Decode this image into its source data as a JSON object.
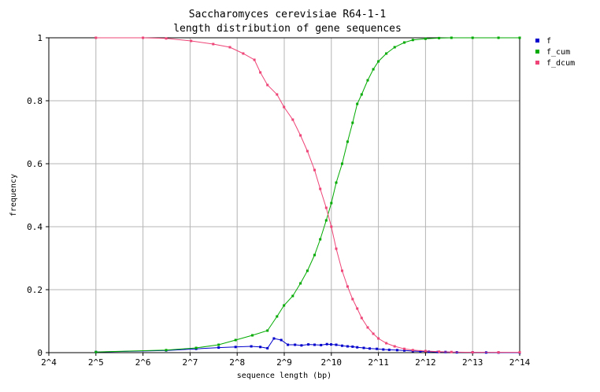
{
  "chart_data": {
    "type": "line",
    "title_line1": "Saccharomyces cerevisiae R64-1-1",
    "title_line2": "length distribution of gene sequences",
    "xlabel": "sequence length (bp)",
    "ylabel": "frequency",
    "x_scale": "log2",
    "xlim": [
      16,
      16384
    ],
    "ylim": [
      0,
      1
    ],
    "x_ticks": [
      16,
      32,
      64,
      128,
      256,
      512,
      1024,
      2048,
      4096,
      8192,
      16384
    ],
    "x_tick_labels": [
      "2^4",
      "2^5",
      "2^6",
      "2^7",
      "2^8",
      "2^9",
      "2^10",
      "2^11",
      "2^12",
      "2^13",
      "2^14"
    ],
    "y_ticks": [
      0,
      0.2,
      0.4,
      0.6,
      0.8,
      1
    ],
    "y_tick_labels": [
      "0",
      "0.2",
      "0.4",
      "0.6",
      "0.8",
      "1"
    ],
    "grid": true,
    "legend_position": "right-top",
    "series": [
      {
        "name": "f",
        "color": "#0000cc",
        "x": [
          32,
          90,
          140,
          195,
          250,
          315,
          360,
          400,
          440,
          490,
          540,
          600,
          660,
          730,
          800,
          880,
          960,
          1020,
          1100,
          1200,
          1300,
          1400,
          1500,
          1650,
          1800,
          2000,
          2200,
          2400,
          2700,
          3000,
          3400,
          3800,
          4300,
          4900,
          5500,
          6500,
          8192,
          10000,
          12000,
          16384
        ],
        "y": [
          0.002,
          0.007,
          0.012,
          0.016,
          0.018,
          0.02,
          0.018,
          0.014,
          0.045,
          0.04,
          0.025,
          0.025,
          0.023,
          0.026,
          0.025,
          0.024,
          0.027,
          0.026,
          0.025,
          0.022,
          0.02,
          0.019,
          0.017,
          0.015,
          0.013,
          0.012,
          0.01,
          0.009,
          0.008,
          0.007,
          0.005,
          0.004,
          0.003,
          0.002,
          0.002,
          0.001,
          0.001,
          0.0005,
          0.0003,
          0
        ]
      },
      {
        "name": "f_cum",
        "color": "#00aa00",
        "x": [
          32,
          90,
          140,
          195,
          250,
          320,
          400,
          460,
          510,
          580,
          650,
          720,
          800,
          870,
          950,
          1024,
          1100,
          1200,
          1300,
          1400,
          1500,
          1600,
          1750,
          1900,
          2048,
          2300,
          2600,
          3000,
          3400,
          4096,
          5000,
          6000,
          8192,
          12000,
          16384
        ],
        "y": [
          0.002,
          0.008,
          0.015,
          0.025,
          0.04,
          0.055,
          0.07,
          0.115,
          0.15,
          0.18,
          0.22,
          0.26,
          0.31,
          0.36,
          0.42,
          0.475,
          0.54,
          0.6,
          0.67,
          0.73,
          0.79,
          0.82,
          0.865,
          0.9,
          0.925,
          0.95,
          0.97,
          0.985,
          0.993,
          0.997,
          0.999,
          1,
          1,
          1,
          1
        ]
      },
      {
        "name": "f_dcum",
        "color": "#ee4477",
        "x": [
          32,
          64,
          90,
          130,
          180,
          230,
          280,
          330,
          360,
          400,
          460,
          510,
          580,
          650,
          720,
          800,
          870,
          950,
          1024,
          1100,
          1200,
          1300,
          1400,
          1500,
          1600,
          1750,
          1900,
          2048,
          2300,
          2600,
          3000,
          3400,
          4096,
          5000,
          6000,
          8192,
          12000,
          16384
        ],
        "y": [
          1,
          1,
          0.998,
          0.99,
          0.98,
          0.97,
          0.95,
          0.93,
          0.89,
          0.85,
          0.82,
          0.78,
          0.74,
          0.69,
          0.64,
          0.58,
          0.52,
          0.46,
          0.4,
          0.33,
          0.26,
          0.21,
          0.17,
          0.14,
          0.11,
          0.08,
          0.06,
          0.045,
          0.03,
          0.02,
          0.012,
          0.008,
          0.005,
          0.003,
          0.002,
          0.001,
          0.001,
          0.001
        ]
      }
    ]
  }
}
